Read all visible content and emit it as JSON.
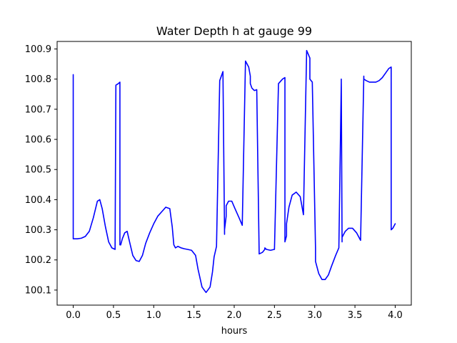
{
  "chart_data": {
    "type": "line",
    "title": "Water Depth h at gauge 99",
    "xlabel": "hours",
    "ylabel": "",
    "xlim": [
      -0.2,
      4.2
    ],
    "ylim": [
      100.05,
      100.925
    ],
    "xticks": [
      0.0,
      0.5,
      1.0,
      1.5,
      2.0,
      2.5,
      3.0,
      3.5,
      4.0
    ],
    "xtick_labels": [
      "0.0",
      "0.5",
      "1.0",
      "1.5",
      "2.0",
      "2.5",
      "3.0",
      "3.5",
      "4.0"
    ],
    "yticks": [
      100.1,
      100.2,
      100.3,
      100.4,
      100.5,
      100.6,
      100.7,
      100.8,
      100.9
    ],
    "ytick_labels": [
      "100.1",
      "100.2",
      "100.3",
      "100.4",
      "100.5",
      "100.6",
      "100.7",
      "100.8",
      "100.9"
    ],
    "grid": false,
    "series": [
      {
        "color": "#0000ff",
        "x": [
          0.0,
          0.0,
          0.05,
          0.1,
          0.15,
          0.2,
          0.25,
          0.3,
          0.33,
          0.36,
          0.4,
          0.44,
          0.48,
          0.52,
          0.53,
          0.53,
          0.56,
          0.58,
          0.58,
          0.59,
          0.61,
          0.64,
          0.67,
          0.7,
          0.74,
          0.78,
          0.82,
          0.86,
          0.9,
          0.95,
          1.0,
          1.05,
          1.1,
          1.15,
          1.2,
          1.23,
          1.25,
          1.27,
          1.3,
          1.34,
          1.38,
          1.42,
          1.47,
          1.52,
          1.55,
          1.6,
          1.65,
          1.7,
          1.73,
          1.75,
          1.78,
          1.82,
          1.86,
          1.88,
          1.88,
          1.9,
          1.9,
          1.93,
          1.97,
          2.01,
          2.06,
          2.1,
          2.14,
          2.18,
          2.2,
          2.2,
          2.22,
          2.25,
          2.28,
          2.31,
          2.35,
          2.38,
          2.38,
          2.4,
          2.45,
          2.5,
          2.55,
          2.6,
          2.63,
          2.63,
          2.65,
          2.65,
          2.68,
          2.72,
          2.77,
          2.82,
          2.86,
          2.9,
          2.94,
          2.94,
          2.97,
          3.01,
          3.01,
          3.05,
          3.09,
          3.13,
          3.17,
          3.21,
          3.26,
          3.3,
          3.33,
          3.33,
          3.34,
          3.34,
          3.38,
          3.42,
          3.47,
          3.52,
          3.57,
          3.61,
          3.61,
          3.64,
          3.68,
          3.72,
          3.76,
          3.8,
          3.84,
          3.88,
          3.92,
          3.95,
          3.95,
          3.97,
          4.0
        ],
        "y": [
          100.815,
          100.27,
          100.27,
          100.272,
          100.278,
          100.295,
          100.34,
          100.395,
          100.4,
          100.37,
          100.31,
          100.26,
          100.24,
          100.235,
          100.78,
          100.78,
          100.785,
          100.79,
          100.25,
          100.25,
          100.27,
          100.29,
          100.295,
          100.26,
          100.215,
          100.198,
          100.195,
          100.215,
          100.255,
          100.29,
          100.32,
          100.345,
          100.36,
          100.375,
          100.37,
          100.31,
          100.25,
          100.24,
          100.245,
          100.24,
          100.237,
          100.235,
          100.232,
          100.215,
          100.17,
          100.11,
          100.092,
          100.11,
          100.16,
          100.21,
          100.245,
          100.795,
          100.825,
          100.285,
          100.3,
          100.345,
          100.38,
          100.395,
          100.395,
          100.37,
          100.34,
          100.315,
          100.86,
          100.84,
          100.81,
          100.785,
          100.77,
          100.762,
          100.765,
          100.22,
          100.225,
          100.235,
          100.24,
          100.235,
          100.232,
          100.235,
          100.785,
          100.8,
          100.805,
          100.26,
          100.28,
          100.32,
          100.375,
          100.415,
          100.425,
          100.41,
          100.35,
          100.895,
          100.87,
          100.8,
          100.79,
          100.24,
          100.195,
          100.155,
          100.135,
          100.135,
          100.15,
          100.18,
          100.215,
          100.24,
          100.79,
          100.8,
          100.26,
          100.275,
          100.295,
          100.305,
          100.305,
          100.29,
          100.265,
          100.81,
          100.8,
          100.795,
          100.79,
          100.79,
          100.79,
          100.795,
          100.805,
          100.82,
          100.835,
          100.84,
          100.3,
          100.305,
          100.32
        ]
      }
    ]
  }
}
